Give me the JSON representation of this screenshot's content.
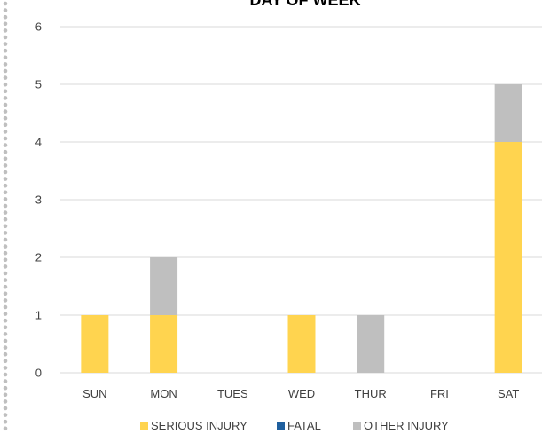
{
  "chart_data": {
    "type": "bar",
    "stacked": true,
    "title": "DAY OF WEEK",
    "categories": [
      "SUN",
      "MON",
      "TUES",
      "WED",
      "THUR",
      "FRI",
      "SAT"
    ],
    "series": [
      {
        "name": "SERIOUS INJURY",
        "color": "#FFD44F",
        "values": [
          1,
          1,
          0,
          1,
          0,
          0,
          4
        ]
      },
      {
        "name": "FATAL",
        "color": "#1F5F9E",
        "values": [
          0,
          0,
          0,
          0,
          0,
          0,
          0
        ]
      },
      {
        "name": "OTHER INJURY",
        "color": "#BFBFBF",
        "values": [
          0,
          1,
          0,
          0,
          1,
          0,
          1
        ]
      }
    ],
    "ylim": [
      0,
      6
    ],
    "yticks": [
      "0",
      "1",
      "2",
      "3",
      "4",
      "5",
      "6"
    ],
    "grid": true,
    "legend": "bottom"
  }
}
